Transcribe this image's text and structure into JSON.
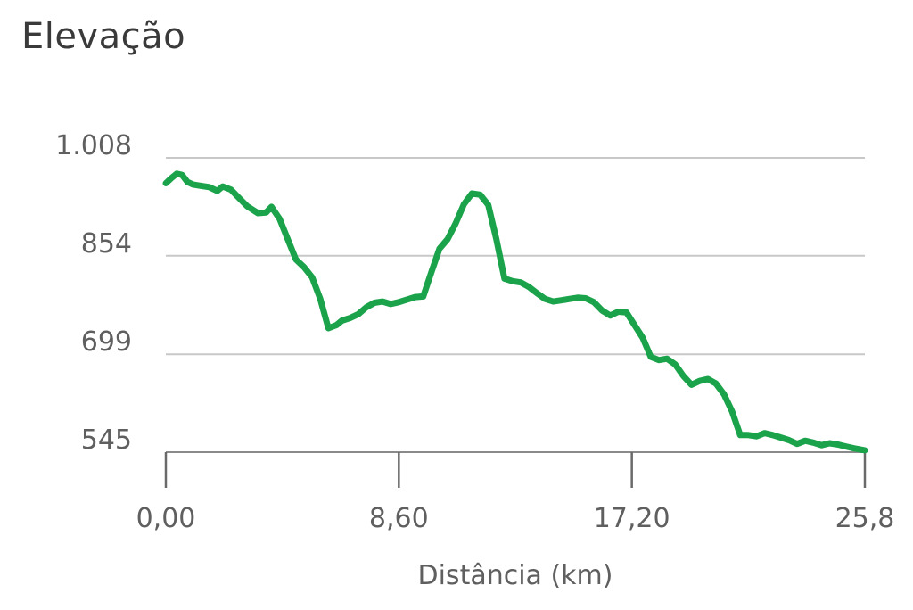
{
  "title": "Elevação",
  "chart_data": {
    "type": "line",
    "title": "Elevação",
    "xlabel": "Distância (km)",
    "ylabel": "",
    "xlim": [
      0,
      25.8
    ],
    "ylim": [
      545,
      1008
    ],
    "x_ticks": [
      0,
      8.6,
      17.2,
      25.8
    ],
    "x_tick_labels": [
      "0,00",
      "8,60",
      "17,20",
      "25,8"
    ],
    "y_ticks": [
      545,
      699,
      854,
      1008
    ],
    "y_tick_labels": [
      "545",
      "699",
      "854",
      "1.008"
    ],
    "grid": true,
    "line_color": "#1aa34a",
    "series": [
      {
        "x": [
          0.0,
          0.2,
          0.4,
          0.6,
          0.8,
          1.0,
          1.3,
          1.6,
          1.9,
          2.1,
          2.4,
          2.7,
          3.0,
          3.4,
          3.7,
          3.9,
          4.2,
          4.5,
          4.8,
          5.1,
          5.4,
          5.7,
          6.0,
          6.3,
          6.5,
          6.8,
          7.1,
          7.4,
          7.7,
          8.0,
          8.3,
          8.6,
          8.9,
          9.2,
          9.5,
          9.8,
          10.1,
          10.4,
          10.7,
          11.0,
          11.3,
          11.6,
          11.9,
          12.2,
          12.5,
          12.8,
          13.1,
          13.4,
          13.7,
          14.0,
          14.3,
          14.6,
          14.9,
          15.2,
          15.5,
          15.8,
          16.1,
          16.4,
          16.7,
          17.0,
          17.3,
          17.6,
          17.9,
          18.2,
          18.5,
          18.8,
          19.1,
          19.4,
          19.7,
          20.0,
          20.3,
          20.6,
          20.9,
          21.2,
          21.5,
          21.8,
          22.1,
          22.4,
          22.7,
          23.0,
          23.3,
          23.6,
          23.9,
          24.2,
          24.5,
          24.8,
          25.1,
          25.4,
          25.8
        ],
        "y": [
          968,
          976,
          983,
          981,
          970,
          966,
          964,
          962,
          956,
          963,
          958,
          945,
          932,
          921,
          922,
          931,
          912,
          880,
          848,
          836,
          820,
          786,
          740,
          745,
          752,
          756,
          762,
          773,
          780,
          782,
          778,
          781,
          785,
          789,
          790,
          828,
          865,
          880,
          905,
          935,
          952,
          950,
          934,
          880,
          818,
          814,
          812,
          805,
          795,
          786,
          782,
          784,
          786,
          788,
          787,
          781,
          768,
          760,
          766,
          765,
          745,
          725,
          695,
          690,
          692,
          683,
          665,
          651,
          657,
          660,
          653,
          636,
          609,
          572,
          572,
          570,
          575,
          572,
          568,
          564,
          558,
          563,
          560,
          556,
          559,
          557,
          554,
          551,
          548
        ]
      }
    ]
  }
}
